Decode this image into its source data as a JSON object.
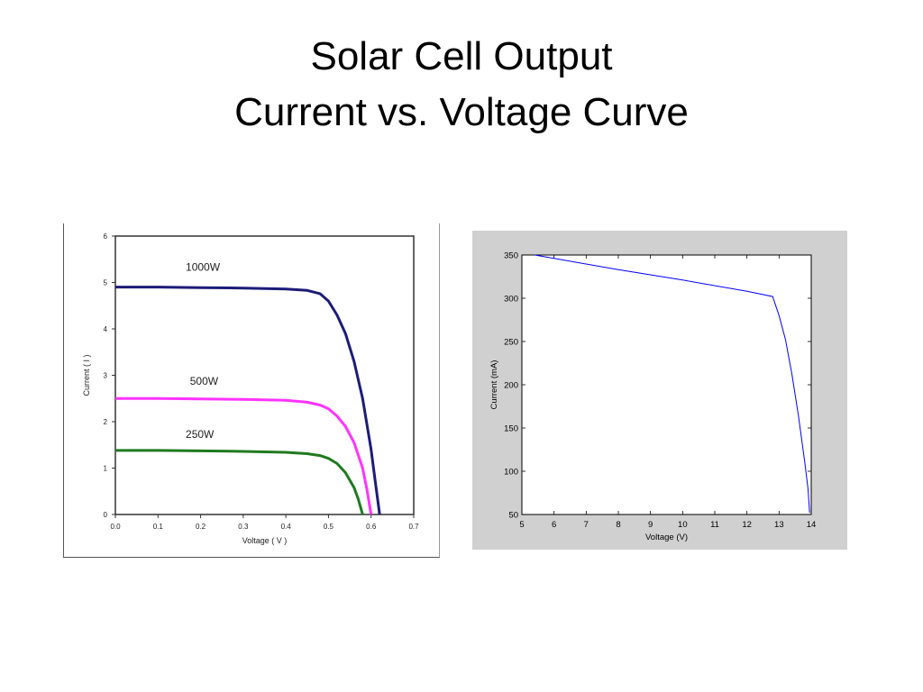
{
  "slide": {
    "title_line1": "Solar Cell Output",
    "title_line2": "Current vs. Voltage Curve"
  },
  "chart_data": [
    {
      "type": "line",
      "xlabel": "Voltage ( V )",
      "ylabel": "Current ( I )",
      "xlim": [
        0.0,
        0.7
      ],
      "ylim": [
        0,
        6
      ],
      "x_ticks": [
        "0.0",
        "0.1",
        "0.2",
        "0.3",
        "0.4",
        "0.5",
        "0.6",
        "0.7"
      ],
      "y_ticks": [
        "0",
        "1",
        "2",
        "3",
        "4",
        "5",
        "6"
      ],
      "grid": false,
      "series": [
        {
          "name": "1000W",
          "color": "#1c1c78",
          "x": [
            0.0,
            0.1,
            0.2,
            0.3,
            0.4,
            0.45,
            0.48,
            0.5,
            0.52,
            0.54,
            0.56,
            0.58,
            0.6,
            0.61,
            0.62
          ],
          "y": [
            4.9,
            4.9,
            4.89,
            4.88,
            4.86,
            4.83,
            4.76,
            4.6,
            4.3,
            3.9,
            3.3,
            2.5,
            1.4,
            0.7,
            0.0
          ]
        },
        {
          "name": "500W",
          "color": "#ff33ff",
          "x": [
            0.0,
            0.1,
            0.2,
            0.3,
            0.4,
            0.45,
            0.48,
            0.5,
            0.52,
            0.54,
            0.56,
            0.58,
            0.59,
            0.6
          ],
          "y": [
            2.5,
            2.5,
            2.49,
            2.48,
            2.46,
            2.42,
            2.36,
            2.28,
            2.12,
            1.9,
            1.55,
            1.0,
            0.55,
            0.0
          ]
        },
        {
          "name": "250W",
          "color": "#1f7a1f",
          "x": [
            0.0,
            0.1,
            0.2,
            0.3,
            0.4,
            0.45,
            0.48,
            0.5,
            0.52,
            0.54,
            0.56,
            0.57,
            0.58
          ],
          "y": [
            1.38,
            1.38,
            1.37,
            1.36,
            1.34,
            1.31,
            1.27,
            1.21,
            1.1,
            0.9,
            0.58,
            0.33,
            0.0
          ]
        }
      ]
    },
    {
      "type": "line",
      "xlabel": "Voltage (V)",
      "ylabel": "Current (mA)",
      "xlim": [
        5,
        14
      ],
      "ylim": [
        50,
        350
      ],
      "x_ticks": [
        "5",
        "6",
        "7",
        "8",
        "9",
        "10",
        "11",
        "12",
        "13",
        "14"
      ],
      "y_ticks": [
        "50",
        "100",
        "150",
        "200",
        "250",
        "300",
        "350"
      ],
      "grid": false,
      "series": [
        {
          "color": "#0000ff",
          "x": [
            5.4,
            8.0,
            10.0,
            12.0,
            12.8,
            13.0,
            13.2,
            13.4,
            13.6,
            13.8,
            13.9,
            13.95
          ],
          "y": [
            350,
            333,
            321,
            308,
            302,
            280,
            252,
            212,
            165,
            110,
            80,
            52
          ]
        }
      ]
    }
  ]
}
